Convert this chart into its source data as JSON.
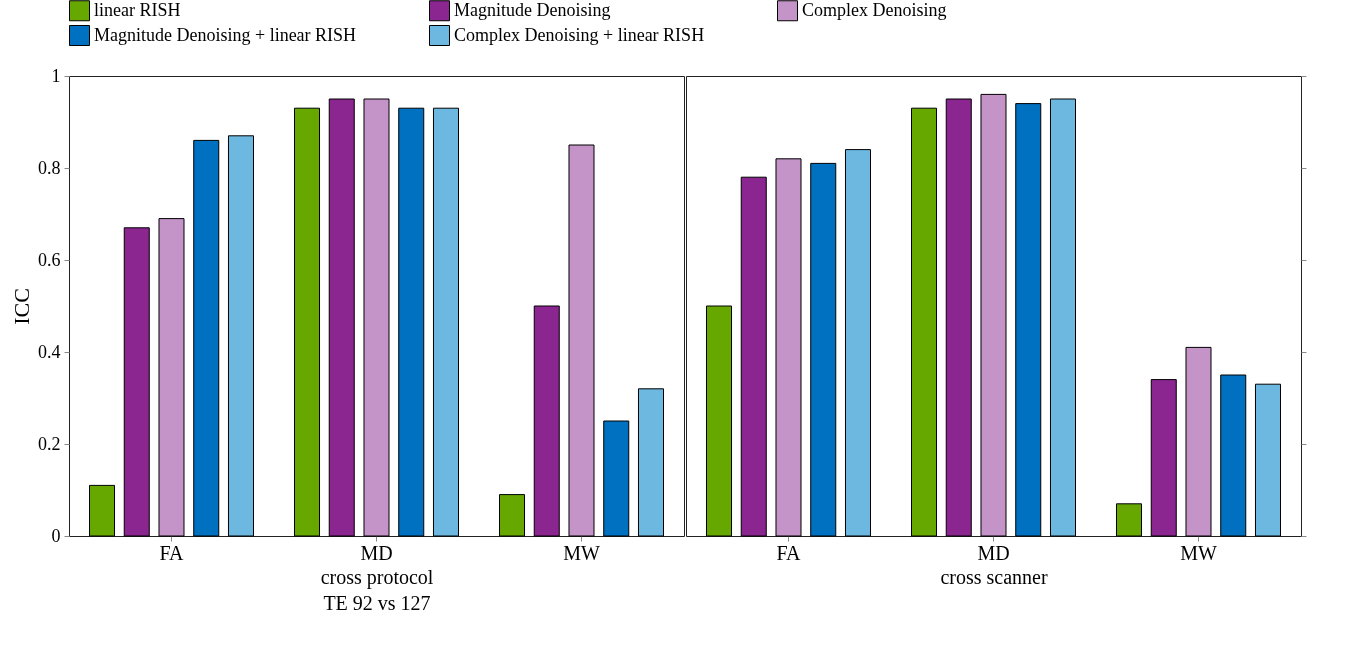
{
  "chart_data": [
    {
      "type": "bar",
      "categories": [
        "FA",
        "MD",
        "MW"
      ],
      "xlabel": "cross protocol\nTE 92 vs 127",
      "ylabel": "ICC",
      "ylim": [
        0,
        1
      ],
      "yticks": [
        0,
        0.2,
        0.4,
        0.6,
        0.8,
        1
      ],
      "legend": "top",
      "grid": false,
      "series": [
        {
          "name": "linear RISH",
          "color": "#66a800",
          "values": [
            0.11,
            0.93,
            0.09
          ]
        },
        {
          "name": "Magnitude Denoising",
          "color": "#8b2590",
          "values": [
            0.67,
            0.95,
            0.5
          ]
        },
        {
          "name": "Complex Denoising",
          "color": "#c493c8",
          "values": [
            0.69,
            0.95,
            0.85
          ]
        },
        {
          "name": "Magnitude Denoising + linear RISH",
          "color": "#0070c0",
          "values": [
            0.86,
            0.93,
            0.25
          ]
        },
        {
          "name": "Complex Denoising + linear RISH",
          "color": "#6cb8e0",
          "values": [
            0.87,
            0.93,
            0.32
          ]
        }
      ]
    },
    {
      "type": "bar",
      "categories": [
        "FA",
        "MD",
        "MW"
      ],
      "xlabel": "cross scanner",
      "ylim": [
        0,
        1
      ],
      "yticks": [
        0,
        0.2,
        0.4,
        0.6,
        0.8,
        1
      ],
      "tick_labels": "x",
      "legend": "top",
      "grid": false,
      "series": [
        {
          "name": "linear RISH",
          "color": "#66a800",
          "values": [
            0.5,
            0.93,
            0.07
          ]
        },
        {
          "name": "Magnitude Denoising",
          "color": "#8b2590",
          "values": [
            0.78,
            0.95,
            0.34
          ]
        },
        {
          "name": "Complex Denoising",
          "color": "#c493c8",
          "values": [
            0.82,
            0.96,
            0.41
          ]
        },
        {
          "name": "Magnitude Denoising + linear RISH",
          "color": "#0070c0",
          "values": [
            0.81,
            0.94,
            0.35
          ]
        },
        {
          "name": "Complex Denoising + linear RISH",
          "color": "#6cb8e0",
          "values": [
            0.84,
            0.95,
            0.33
          ]
        }
      ]
    }
  ]
}
